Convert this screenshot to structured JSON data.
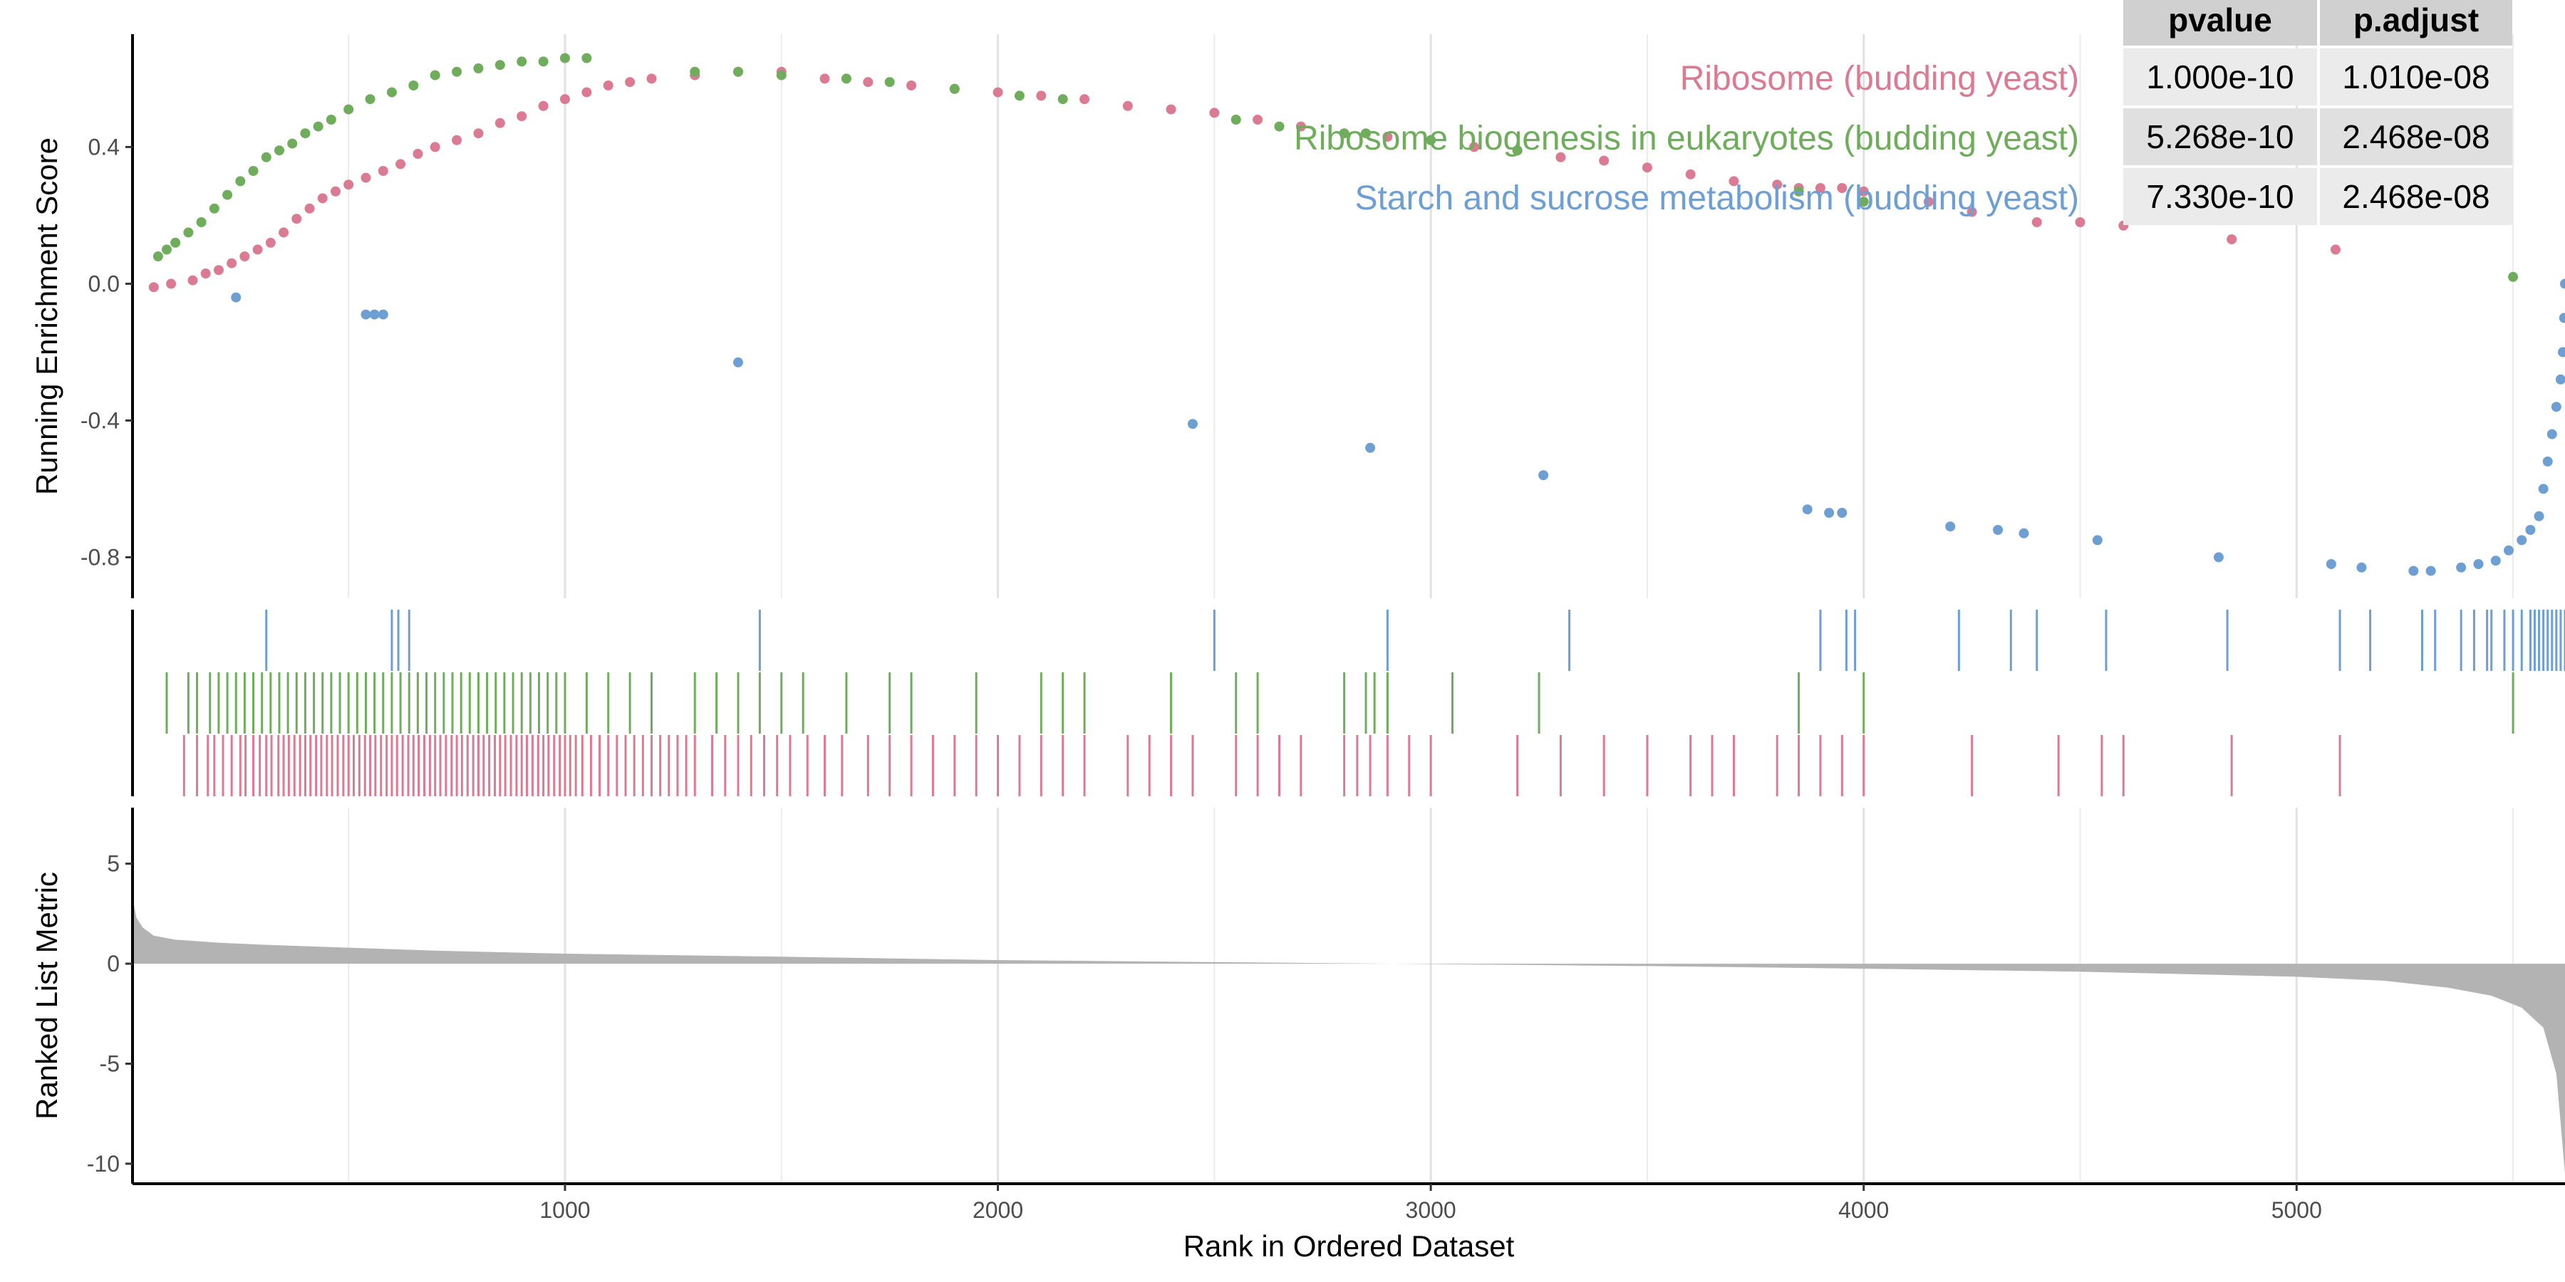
{
  "chart_data": {
    "type": "gsea-enrichment",
    "xlabel": "Rank in Ordered Dataset",
    "ylabel_top": "Running Enrichment Score",
    "ylabel_bottom": "Ranked List Metric",
    "xlim": [
      1,
      5620
    ],
    "x_ticks": [
      1000,
      2000,
      3000,
      4000,
      5000
    ],
    "x_tick_labels": [
      "1000",
      "2000",
      "3000",
      "4000",
      "5000"
    ],
    "es_ylim": [
      -0.92,
      0.73
    ],
    "es_ticks": [
      0.4,
      0.0,
      -0.4,
      -0.8
    ],
    "es_tick_labels": [
      "0.4",
      "0.0",
      "-0.4",
      "-0.8"
    ],
    "metric_ylim": [
      -11,
      7.8
    ],
    "metric_ticks": [
      5,
      0,
      -5,
      -10
    ],
    "metric_tick_labels": [
      "5",
      "0",
      "-5",
      "-10"
    ],
    "grid": true,
    "table": {
      "headers": [
        "pvalue",
        "p.adjust"
      ],
      "rows": [
        [
          "1.000e-10",
          "1.010e-08"
        ],
        [
          "5.268e-10",
          "2.468e-08"
        ],
        [
          "7.330e-10",
          "2.468e-08"
        ]
      ]
    },
    "series": [
      {
        "name": "Ribosome (budding yeast)",
        "color": "#db7b93",
        "points": [
          [
            50,
            -0.01
          ],
          [
            90,
            0.0
          ],
          [
            140,
            0.01
          ],
          [
            170,
            0.03
          ],
          [
            200,
            0.04
          ],
          [
            230,
            0.06
          ],
          [
            260,
            0.08
          ],
          [
            290,
            0.1
          ],
          [
            320,
            0.12
          ],
          [
            350,
            0.15
          ],
          [
            380,
            0.19
          ],
          [
            410,
            0.22
          ],
          [
            440,
            0.25
          ],
          [
            470,
            0.27
          ],
          [
            500,
            0.29
          ],
          [
            540,
            0.31
          ],
          [
            580,
            0.33
          ],
          [
            620,
            0.35
          ],
          [
            660,
            0.38
          ],
          [
            700,
            0.4
          ],
          [
            750,
            0.42
          ],
          [
            800,
            0.44
          ],
          [
            850,
            0.47
          ],
          [
            900,
            0.49
          ],
          [
            950,
            0.52
          ],
          [
            1000,
            0.54
          ],
          [
            1050,
            0.56
          ],
          [
            1100,
            0.58
          ],
          [
            1150,
            0.59
          ],
          [
            1200,
            0.6
          ],
          [
            1300,
            0.61
          ],
          [
            1400,
            0.62
          ],
          [
            1500,
            0.62
          ],
          [
            1600,
            0.6
          ],
          [
            1700,
            0.59
          ],
          [
            1800,
            0.58
          ],
          [
            1900,
            0.57
          ],
          [
            2000,
            0.56
          ],
          [
            2100,
            0.55
          ],
          [
            2200,
            0.54
          ],
          [
            2300,
            0.52
          ],
          [
            2400,
            0.51
          ],
          [
            2500,
            0.5
          ],
          [
            2600,
            0.48
          ],
          [
            2700,
            0.46
          ],
          [
            2800,
            0.44
          ],
          [
            2900,
            0.43
          ],
          [
            3000,
            0.42
          ],
          [
            3100,
            0.4
          ],
          [
            3200,
            0.39
          ],
          [
            3300,
            0.37
          ],
          [
            3400,
            0.36
          ],
          [
            3500,
            0.34
          ],
          [
            3600,
            0.32
          ],
          [
            3700,
            0.3
          ],
          [
            3800,
            0.29
          ],
          [
            3850,
            0.28
          ],
          [
            3900,
            0.28
          ],
          [
            3950,
            0.28
          ],
          [
            4000,
            0.27
          ],
          [
            4150,
            0.24
          ],
          [
            4250,
            0.21
          ],
          [
            4400,
            0.18
          ],
          [
            4500,
            0.18
          ],
          [
            4600,
            0.17
          ],
          [
            4850,
            0.13
          ],
          [
            5090,
            0.1
          ]
        ],
        "hits": [
          120,
          150,
          175,
          190,
          210,
          230,
          250,
          262,
          280,
          295,
          310,
          322,
          338,
          350,
          362,
          375,
          388,
          400,
          412,
          425,
          437,
          450,
          462,
          475,
          488,
          500,
          512,
          525,
          538,
          550,
          562,
          575,
          588,
          600,
          612,
          625,
          638,
          650,
          662,
          675,
          688,
          700,
          712,
          725,
          738,
          750,
          762,
          775,
          788,
          800,
          812,
          825,
          838,
          850,
          862,
          875,
          888,
          900,
          912,
          925,
          938,
          950,
          962,
          975,
          988,
          1000,
          1012,
          1025,
          1040,
          1060,
          1080,
          1100,
          1120,
          1140,
          1160,
          1180,
          1200,
          1220,
          1240,
          1260,
          1280,
          1300,
          1340,
          1370,
          1400,
          1430,
          1460,
          1490,
          1520,
          1560,
          1600,
          1640,
          1700,
          1750,
          1800,
          1850,
          1900,
          1950,
          2000,
          2050,
          2100,
          2150,
          2200,
          2300,
          2350,
          2400,
          2450,
          2550,
          2600,
          2650,
          2700,
          2800,
          2830,
          2860,
          2900,
          2950,
          3000,
          3200,
          3300,
          3400,
          3500,
          3600,
          3650,
          3700,
          3800,
          3850,
          3900,
          3950,
          4000,
          4250,
          4450,
          4550,
          4600,
          4850,
          5100
        ]
      },
      {
        "name": "Ribosome biogenesis in eukaryotes (budding yeast)",
        "color": "#6fad5c",
        "points": [
          [
            60,
            0.08
          ],
          [
            80,
            0.1
          ],
          [
            100,
            0.12
          ],
          [
            130,
            0.15
          ],
          [
            160,
            0.18
          ],
          [
            190,
            0.22
          ],
          [
            220,
            0.26
          ],
          [
            250,
            0.3
          ],
          [
            280,
            0.33
          ],
          [
            310,
            0.37
          ],
          [
            340,
            0.39
          ],
          [
            370,
            0.41
          ],
          [
            400,
            0.44
          ],
          [
            430,
            0.46
          ],
          [
            460,
            0.48
          ],
          [
            500,
            0.51
          ],
          [
            550,
            0.54
          ],
          [
            600,
            0.56
          ],
          [
            650,
            0.58
          ],
          [
            700,
            0.61
          ],
          [
            750,
            0.62
          ],
          [
            800,
            0.63
          ],
          [
            850,
            0.64
          ],
          [
            900,
            0.65
          ],
          [
            950,
            0.65
          ],
          [
            1000,
            0.66
          ],
          [
            1050,
            0.66
          ],
          [
            1300,
            0.62
          ],
          [
            1400,
            0.62
          ],
          [
            1500,
            0.61
          ],
          [
            1650,
            0.6
          ],
          [
            1750,
            0.59
          ],
          [
            1900,
            0.57
          ],
          [
            2050,
            0.55
          ],
          [
            2150,
            0.54
          ],
          [
            2550,
            0.48
          ],
          [
            2650,
            0.46
          ],
          [
            2800,
            0.44
          ],
          [
            2850,
            0.44
          ],
          [
            3000,
            0.42
          ],
          [
            3200,
            0.39
          ],
          [
            3850,
            0.27
          ],
          [
            4000,
            0.24
          ],
          [
            5500,
            0.02
          ]
        ],
        "hits": [
          80,
          130,
          150,
          180,
          200,
          220,
          240,
          260,
          280,
          300,
          320,
          340,
          360,
          380,
          400,
          420,
          440,
          460,
          480,
          500,
          520,
          540,
          560,
          580,
          600,
          620,
          640,
          660,
          680,
          700,
          720,
          740,
          760,
          780,
          800,
          820,
          840,
          860,
          880,
          900,
          920,
          940,
          960,
          980,
          1000,
          1050,
          1100,
          1150,
          1200,
          1300,
          1350,
          1400,
          1450,
          1500,
          1550,
          1650,
          1750,
          1800,
          1950,
          2100,
          2150,
          2200,
          2400,
          2550,
          2600,
          2800,
          2850,
          2870,
          2900,
          3050,
          3250,
          3850,
          4000,
          5500
        ]
      },
      {
        "name": "Starch and sucrose metabolism (budding yeast)",
        "color": "#6e9fd3",
        "points": [
          [
            240,
            -0.04
          ],
          [
            540,
            -0.09
          ],
          [
            560,
            -0.09
          ],
          [
            580,
            -0.09
          ],
          [
            1400,
            -0.23
          ],
          [
            2450,
            -0.41
          ],
          [
            2860,
            -0.48
          ],
          [
            3260,
            -0.56
          ],
          [
            3870,
            -0.66
          ],
          [
            3920,
            -0.67
          ],
          [
            3950,
            -0.67
          ],
          [
            4200,
            -0.71
          ],
          [
            4310,
            -0.72
          ],
          [
            4370,
            -0.73
          ],
          [
            4540,
            -0.75
          ],
          [
            4820,
            -0.8
          ],
          [
            5080,
            -0.82
          ],
          [
            5150,
            -0.83
          ],
          [
            5270,
            -0.84
          ],
          [
            5310,
            -0.84
          ],
          [
            5380,
            -0.83
          ],
          [
            5420,
            -0.82
          ],
          [
            5460,
            -0.81
          ],
          [
            5490,
            -0.78
          ],
          [
            5520,
            -0.75
          ],
          [
            5540,
            -0.72
          ],
          [
            5560,
            -0.68
          ],
          [
            5570,
            -0.6
          ],
          [
            5580,
            -0.52
          ],
          [
            5590,
            -0.44
          ],
          [
            5600,
            -0.36
          ],
          [
            5610,
            -0.28
          ],
          [
            5615,
            -0.2
          ],
          [
            5618,
            -0.1
          ],
          [
            5620,
            0.0
          ]
        ],
        "hits": [
          310,
          600,
          615,
          640,
          1450,
          2500,
          2900,
          3320,
          3900,
          3960,
          3980,
          4220,
          4340,
          4400,
          4560,
          4840,
          5100,
          5170,
          5290,
          5320,
          5380,
          5410,
          5440,
          5450,
          5480,
          5500,
          5520,
          5540,
          5550,
          5560,
          5570,
          5580,
          5590,
          5600,
          5610,
          5620
        ]
      }
    ],
    "metric": {
      "color": "#b3b3b3",
      "points": [
        [
          1,
          3.3
        ],
        [
          10,
          2.3
        ],
        [
          25,
          1.8
        ],
        [
          50,
          1.4
        ],
        [
          100,
          1.2
        ],
        [
          200,
          1.05
        ],
        [
          300,
          0.95
        ],
        [
          500,
          0.8
        ],
        [
          700,
          0.65
        ],
        [
          1000,
          0.5
        ],
        [
          1500,
          0.35
        ],
        [
          2000,
          0.18
        ],
        [
          2500,
          0.08
        ],
        [
          3000,
          -0.02
        ],
        [
          3500,
          -0.12
        ],
        [
          4000,
          -0.25
        ],
        [
          4500,
          -0.4
        ],
        [
          5000,
          -0.65
        ],
        [
          5200,
          -0.85
        ],
        [
          5350,
          -1.2
        ],
        [
          5450,
          -1.6
        ],
        [
          5520,
          -2.2
        ],
        [
          5570,
          -3.2
        ],
        [
          5600,
          -5.5
        ],
        [
          5620,
          -10.5
        ]
      ]
    }
  }
}
